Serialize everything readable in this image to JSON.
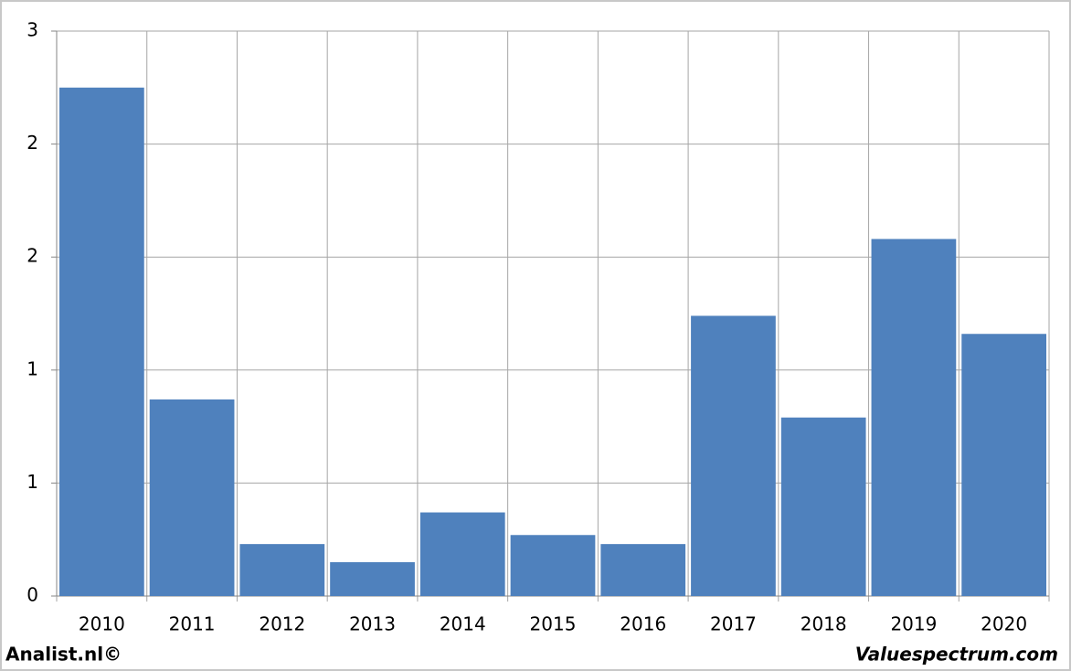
{
  "chart_data": {
    "type": "bar",
    "categories": [
      "2010",
      "2011",
      "2012",
      "2013",
      "2014",
      "2015",
      "2016",
      "2017",
      "2018",
      "2019",
      "2020"
    ],
    "values": [
      2.25,
      0.87,
      0.23,
      0.15,
      0.37,
      0.27,
      0.23,
      1.24,
      0.79,
      1.58,
      1.16
    ],
    "color": "#4f81bd",
    "ylim": [
      0,
      2.5
    ],
    "yticks": [
      0,
      {
        "value": 0.5,
        "label": "1"
      },
      {
        "value": 1,
        "label": "1"
      },
      {
        "value": 1.5,
        "label": "2"
      },
      {
        "value": 2,
        "label": "2"
      },
      {
        "value": 2.5,
        "label": "3"
      }
    ],
    "grid": true
  },
  "footer": {
    "left": "Analist.nl©",
    "right": "Valuespectrum.com"
  }
}
